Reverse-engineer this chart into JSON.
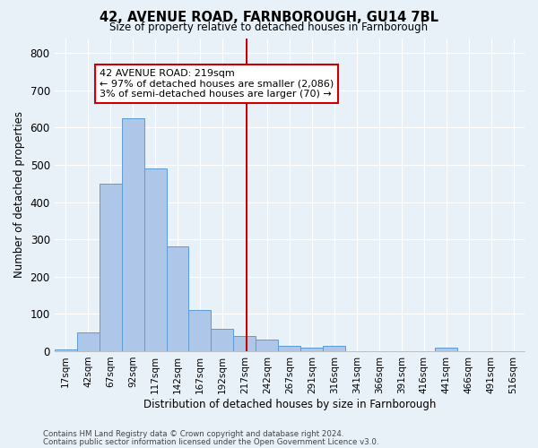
{
  "title": "42, AVENUE ROAD, FARNBOROUGH, GU14 7BL",
  "subtitle": "Size of property relative to detached houses in Farnborough",
  "xlabel": "Distribution of detached houses by size in Farnborough",
  "ylabel": "Number of detached properties",
  "bin_labels": [
    "17sqm",
    "42sqm",
    "67sqm",
    "92sqm",
    "117sqm",
    "142sqm",
    "167sqm",
    "192sqm",
    "217sqm",
    "242sqm",
    "267sqm",
    "291sqm",
    "316sqm",
    "341sqm",
    "366sqm",
    "391sqm",
    "416sqm",
    "441sqm",
    "466sqm",
    "491sqm",
    "516sqm"
  ],
  "bar_heights": [
    5,
    50,
    450,
    625,
    490,
    280,
    110,
    60,
    40,
    30,
    15,
    10,
    15,
    0,
    0,
    0,
    0,
    10,
    0,
    0,
    0
  ],
  "bar_color": "#aec6e8",
  "bar_edge_color": "#5b9bd5",
  "vline_color": "#cc0000",
  "annotation_text": "42 AVENUE ROAD: 219sqm\n← 97% of detached houses are smaller (2,086)\n3% of semi-detached houses are larger (70) →",
  "annotation_box_color": "#ffffff",
  "annotation_box_edge": "#cc0000",
  "ytick_values": [
    0,
    100,
    200,
    300,
    400,
    500,
    600,
    700,
    800
  ],
  "ylim": [
    0,
    840
  ],
  "background_color": "#e8f0f8",
  "grid_color": "#ffffff",
  "footer_line1": "Contains HM Land Registry data © Crown copyright and database right 2024.",
  "footer_line2": "Contains public sector information licensed under the Open Government Licence v3.0."
}
